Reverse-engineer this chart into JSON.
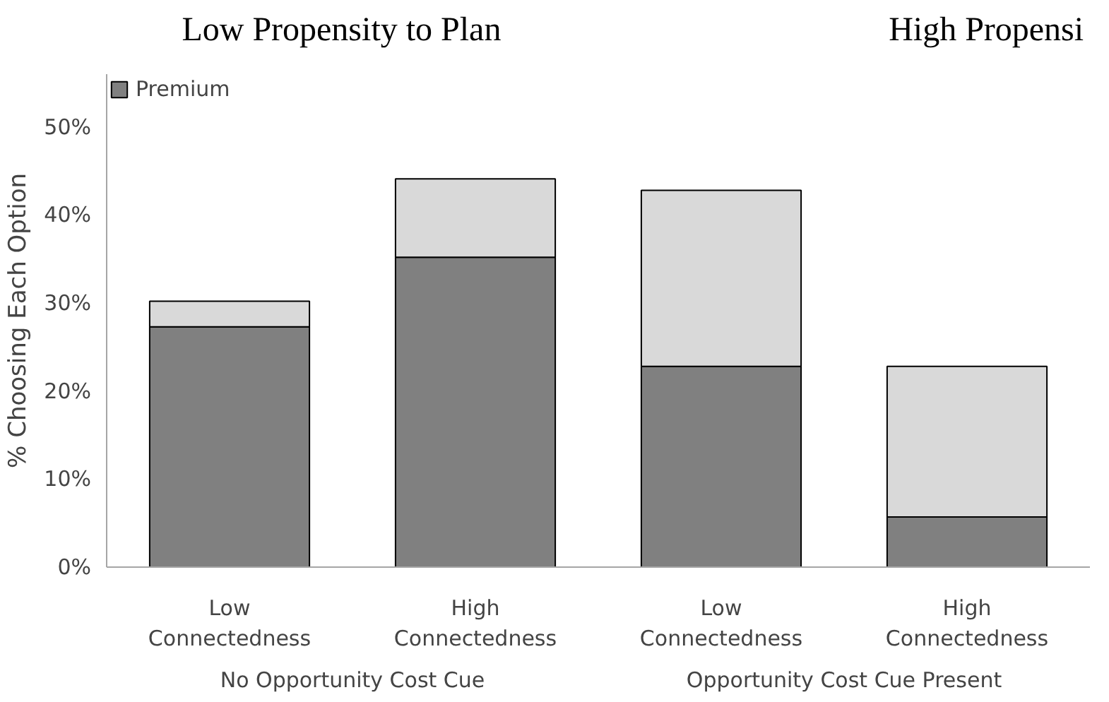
{
  "chart_data": {
    "type": "bar",
    "stacked": true,
    "title": "Low Propensity to Plan",
    "ylabel": "% Choosing Each Option",
    "categories": [
      "Low Connectedness",
      "High Connectedness",
      "Low Connectedness",
      "High Connectedness"
    ],
    "series": [
      {
        "name": "Premium",
        "color": "#808080",
        "values": [
          27.3,
          35.2,
          22.8,
          5.7
        ]
      },
      {
        "color": "#d9d9d9",
        "values": [
          2.9,
          8.9,
          20.0,
          17.1
        ]
      }
    ],
    "ylim": [
      0,
      56
    ],
    "yticks": [
      {
        "value": 0,
        "label": "0%"
      },
      {
        "value": 10,
        "label": "10%"
      },
      {
        "value": 20,
        "label": "20%"
      },
      {
        "value": 30,
        "label": "30%"
      },
      {
        "value": 40,
        "label": "40%"
      },
      {
        "value": 50,
        "label": "50%"
      }
    ],
    "annotations": [
      "No Opportunity Cost Cue",
      "Opportunity Cost Cue Present",
      "High Propensi"
    ],
    "grid": false,
    "legend": "top left"
  }
}
